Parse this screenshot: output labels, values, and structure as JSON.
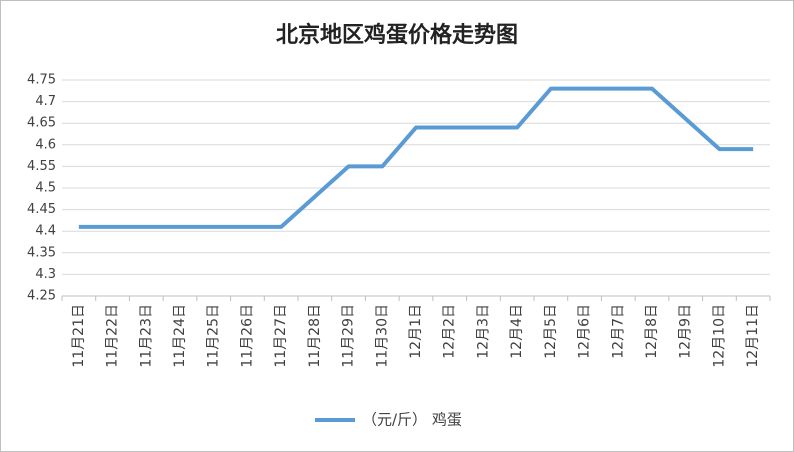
{
  "chart_data": {
    "type": "line",
    "title": "北京地区鸡蛋价格走势图",
    "categories": [
      "11月21日",
      "11月22日",
      "11月23日",
      "11月24日",
      "11月25日",
      "11月26日",
      "11月27日",
      "11月28日",
      "11月29日",
      "11月30日",
      "12月1日",
      "12月2日",
      "12月3日",
      "12月4日",
      "12月5日",
      "12月6日",
      "12月7日",
      "12月8日",
      "12月9日",
      "12月10日",
      "12月11日"
    ],
    "series": [
      {
        "name": "（元/斤） 鸡蛋",
        "color": "#5b9bd5",
        "values": [
          4.41,
          4.41,
          4.41,
          4.41,
          4.41,
          4.41,
          4.41,
          4.48,
          4.55,
          4.55,
          4.64,
          4.64,
          4.64,
          4.64,
          4.73,
          4.73,
          4.73,
          4.73,
          4.66,
          4.59,
          4.59
        ]
      }
    ],
    "ylim": [
      4.25,
      4.75
    ],
    "yticks": [
      4.25,
      4.3,
      4.35,
      4.4,
      4.45,
      4.5,
      4.55,
      4.6,
      4.65,
      4.7,
      4.75
    ],
    "grid": true,
    "legend": "bottom"
  }
}
